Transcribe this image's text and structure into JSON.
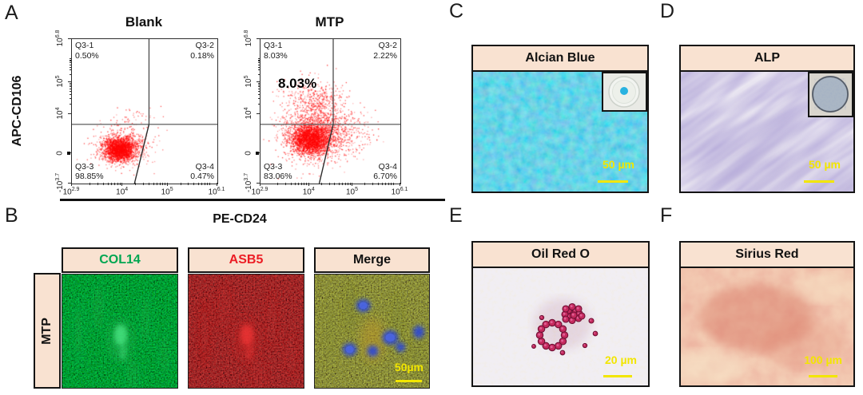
{
  "letters": {
    "A": "A",
    "B": "B",
    "C": "C",
    "D": "D",
    "E": "E",
    "F": "F"
  },
  "flow": {
    "y_axis_label": "APC-CD106",
    "x_axis_label": "PE-CD24",
    "x_tick_labels": [
      "10^2.9",
      "10^4",
      "10^5",
      "10^6.1"
    ],
    "y_tick_labels": [
      "10^6.8",
      "10^5",
      "10^4",
      "0",
      "-10^3.7"
    ],
    "plots": [
      {
        "title": "Blank",
        "annotation": "",
        "quadrants": [
          {
            "name": "Q3-1",
            "value": "0.50%"
          },
          {
            "name": "Q3-2",
            "value": "0.18%"
          },
          {
            "name": "Q3-3",
            "value": "98.85%"
          },
          {
            "name": "Q3-4",
            "value": "0.47%"
          }
        ]
      },
      {
        "title": "MTP",
        "annotation": "8.03%",
        "quadrants": [
          {
            "name": "Q3-1",
            "value": "8.03%"
          },
          {
            "name": "Q3-2",
            "value": "2.22%"
          },
          {
            "name": "Q3-3",
            "value": "83.06%"
          },
          {
            "name": "Q3-4",
            "value": "6.70%"
          }
        ]
      }
    ]
  },
  "immunofluorescence": {
    "row_label": "MTP",
    "columns": [
      {
        "label": "COL14",
        "color": "#00A651"
      },
      {
        "label": "ASB5",
        "color": "#EC1C24"
      },
      {
        "label": "Merge",
        "color": "#111111"
      }
    ],
    "scale_bar": "50µm"
  },
  "stains": [
    {
      "letter": "C",
      "title": "Alcian Blue",
      "scale_bar": "50 µm"
    },
    {
      "letter": "D",
      "title": "ALP",
      "scale_bar": "50 µm"
    },
    {
      "letter": "E",
      "title": "Oil Red O",
      "scale_bar": "20 µm"
    },
    {
      "letter": "F",
      "title": "Sirius Red",
      "scale_bar": "100 µm"
    }
  ],
  "colors": {
    "panel_header_bg": "#f9e2d1",
    "scale_bar_yellow": "#f2e600",
    "flow_dot_red": "#ff0000"
  },
  "chart_data": [
    {
      "type": "scatter",
      "title": "Blank",
      "xlabel": "PE-CD24",
      "ylabel": "APC-CD106",
      "x_ticks": [
        "10^2.9",
        "10^4",
        "10^5",
        "10^6.1"
      ],
      "y_ticks": [
        "-10^3.7",
        "0",
        "10^4",
        "10^5",
        "10^6.8"
      ],
      "quadrant_percentages": {
        "Q3-1": 0.5,
        "Q3-2": 0.18,
        "Q3-3": 98.85,
        "Q3-4": 0.47
      },
      "gate_vline_frac": 0.53,
      "gate_hline_frac": 0.59,
      "clusters": [
        [
          0.33,
          0.77,
          0.055,
          0.042,
          2200
        ],
        [
          0.34,
          0.745,
          0.1,
          0.068,
          520
        ],
        [
          0.43,
          0.545,
          0.1,
          0.035,
          45
        ]
      ]
    },
    {
      "type": "scatter",
      "title": "MTP",
      "xlabel": "PE-CD24",
      "ylabel": "APC-CD106",
      "x_ticks": [
        "10^2.9",
        "10^4",
        "10^5",
        "10^6.1"
      ],
      "y_ticks": [
        "-10^3.7",
        "0",
        "10^4",
        "10^5",
        "10^6.8"
      ],
      "annotation": "8.03%",
      "quadrant_percentages": {
        "Q3-1": 8.03,
        "Q3-2": 2.22,
        "Q3-3": 83.06,
        "Q3-4": 6.7
      },
      "gate_vline_frac": 0.52,
      "gate_hline_frac": 0.59,
      "clusters": [
        [
          0.36,
          0.7,
          0.07,
          0.055,
          2600
        ],
        [
          0.4,
          0.63,
          0.14,
          0.11,
          1000
        ],
        [
          0.38,
          0.43,
          0.11,
          0.085,
          420
        ],
        [
          0.57,
          0.67,
          0.12,
          0.085,
          320
        ]
      ]
    }
  ]
}
